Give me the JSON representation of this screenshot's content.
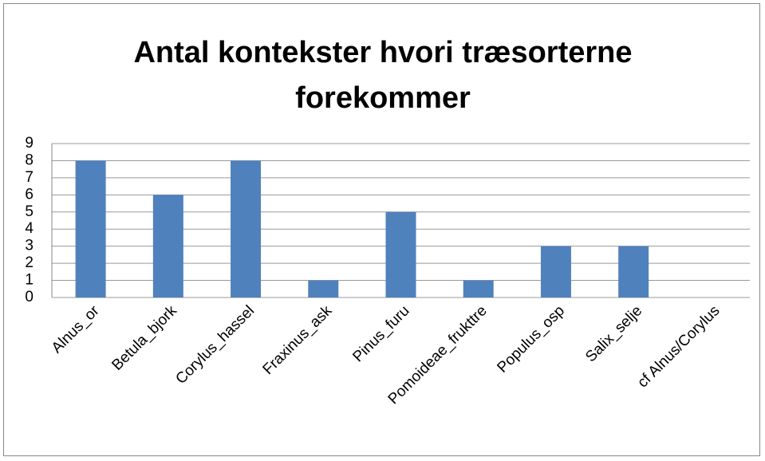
{
  "chart_data": {
    "type": "bar",
    "title": "Antal kontekster hvori træsorterne forekommer",
    "categories": [
      "Alnus_or",
      "Betula_bjork",
      "Corylus_hassel",
      "Fraxinus_ask",
      "Pinus_furu",
      "Pomoideae_frukttre",
      "Populus_osp",
      "Salix_selje",
      "cf Alnus/Corylus"
    ],
    "values": [
      8,
      6,
      8,
      1,
      5,
      1,
      3,
      3,
      0
    ],
    "color": "#4f81bd",
    "ylim": [
      0,
      9
    ],
    "yticks": [
      0,
      1,
      2,
      3,
      4,
      5,
      6,
      7,
      8,
      9
    ],
    "grid": true
  }
}
